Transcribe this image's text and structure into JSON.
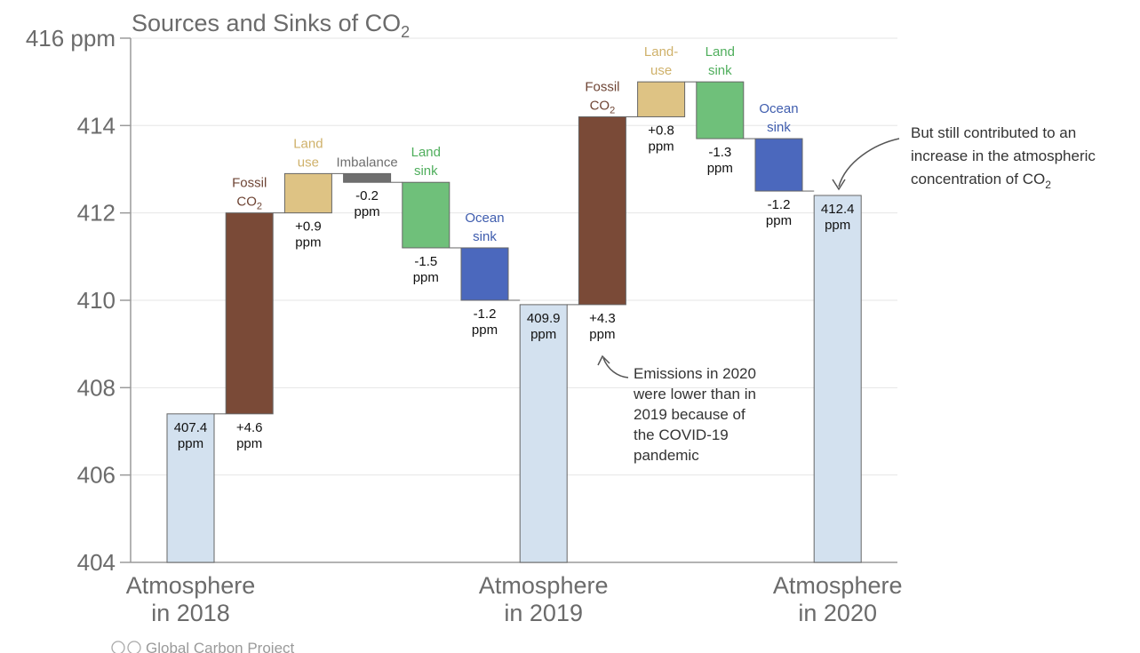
{
  "chart_data": {
    "type": "bar",
    "subtype": "waterfall",
    "title": "Sources and Sinks of CO",
    "title_subscript": "2",
    "y_unit": "ppm",
    "ylim": [
      404,
      416
    ],
    "yticks": [
      404,
      406,
      408,
      410,
      412,
      414,
      416
    ],
    "ytick_labels": [
      "404",
      "406",
      "408",
      "410",
      "412",
      "414",
      "416 ppm"
    ],
    "grid": true,
    "bars": [
      {
        "kind": "total",
        "category": "Atmosphere in 2018",
        "category_lines": [
          "Atmosphere",
          "in 2018"
        ],
        "base": 404,
        "value": 407.4,
        "value_lines": [
          "407.4",
          "ppm"
        ],
        "color": "#d3e1ef"
      },
      {
        "kind": "delta",
        "label_lines": [
          "Fossil",
          "CO"
        ],
        "label_sub": "2",
        "delta": 4.6,
        "value_lines": [
          "+4.6",
          "ppm"
        ],
        "color": "#7a4a37",
        "label_color": "#6e4434"
      },
      {
        "kind": "delta",
        "label_lines": [
          "Land",
          "use"
        ],
        "delta": 0.9,
        "value_lines": [
          "+0.9",
          "ppm"
        ],
        "color": "#dec384",
        "label_color": "#cfb16a"
      },
      {
        "kind": "delta",
        "label_lines": [
          "Imbalance"
        ],
        "delta": -0.2,
        "value_lines": [
          "-0.2",
          "ppm"
        ],
        "color": "#6e6e6e",
        "label_color": "#6e6e6e"
      },
      {
        "kind": "delta",
        "label_lines": [
          "Land",
          "sink"
        ],
        "delta": -1.5,
        "value_lines": [
          "-1.5",
          "ppm"
        ],
        "color": "#6fc07a",
        "label_color": "#4fae5c"
      },
      {
        "kind": "delta",
        "label_lines": [
          "Ocean",
          "sink"
        ],
        "delta": -1.2,
        "value_lines": [
          "-1.2",
          "ppm"
        ],
        "color": "#4b68bd",
        "label_color": "#3f5dae"
      },
      {
        "kind": "total",
        "category": "Atmosphere in 2019",
        "category_lines": [
          "Atmosphere",
          "in 2019"
        ],
        "base": 404,
        "value": 409.9,
        "value_lines": [
          "409.9",
          "ppm"
        ],
        "color": "#d3e1ef"
      },
      {
        "kind": "delta",
        "label_lines": [
          "Fossil",
          "CO"
        ],
        "label_sub": "2",
        "delta": 4.3,
        "value_lines": [
          "+4.3",
          "ppm"
        ],
        "color": "#7a4a37",
        "label_color": "#6e4434"
      },
      {
        "kind": "delta",
        "label_lines": [
          "Land-",
          "use"
        ],
        "delta": 0.8,
        "value_lines": [
          "+0.8",
          "ppm"
        ],
        "color": "#dec384",
        "label_color": "#cfb16a"
      },
      {
        "kind": "delta",
        "label_lines": [
          "Land",
          "sink"
        ],
        "delta": -1.3,
        "value_lines": [
          "-1.3",
          "ppm"
        ],
        "color": "#6fc07a",
        "label_color": "#4fae5c"
      },
      {
        "kind": "delta",
        "label_lines": [
          "Ocean",
          "sink"
        ],
        "delta": -1.2,
        "value_lines": [
          "-1.2",
          "ppm"
        ],
        "color": "#4b68bd",
        "label_color": "#3f5dae"
      },
      {
        "kind": "total",
        "category": "Atmosphere in 2020",
        "category_lines": [
          "Atmosphere",
          "in 2020"
        ],
        "base": 404,
        "value": 412.4,
        "value_lines": [
          "412.4",
          "ppm"
        ],
        "color": "#d3e1ef"
      }
    ],
    "annotations": [
      {
        "text_lines": [
          "Emissions in 2020",
          "were lower than in",
          "2019 because of",
          "the COVID-19",
          "pandemic"
        ],
        "points_to": "Fossil CO2 2019-2020"
      },
      {
        "text_lines": [
          "But still contributed to an",
          "increase in the atmospheric",
          "concentration of CO"
        ],
        "text_sub": "2",
        "points_to": "Atmosphere in 2020"
      }
    ]
  },
  "footer": {
    "credit": "Global Carbon Project",
    "credit_icon": "creative-commons-icon"
  }
}
